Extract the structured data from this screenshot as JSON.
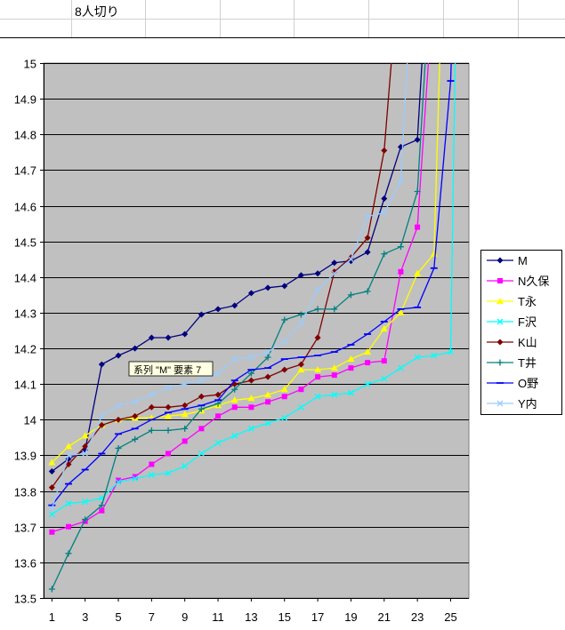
{
  "sheet": {
    "cell_label": "8人切り"
  },
  "tooltip": {
    "text": "系列 \"M\" 要素 7"
  },
  "colors": {
    "plot_bg": "#c0c0c0",
    "grid": "#000000"
  },
  "chart_data": {
    "type": "line",
    "title": "",
    "xlabel": "",
    "ylabel": "",
    "ylim": [
      13.5,
      15
    ],
    "yticks": [
      13.5,
      13.6,
      13.7,
      13.8,
      13.9,
      14,
      14.1,
      14.2,
      14.3,
      14.4,
      14.5,
      14.6,
      14.7,
      14.8,
      14.9,
      15
    ],
    "ytick_labels": [
      "13.5",
      "13.6",
      "13.7",
      "13.8",
      "13.9",
      "14",
      "14.1",
      "14.2",
      "14.3",
      "14.4",
      "14.5",
      "14.6",
      "14.7",
      "14.8",
      "14.9",
      "15"
    ],
    "xticks": [
      1,
      3,
      5,
      7,
      9,
      11,
      13,
      15,
      17,
      19,
      21,
      23,
      25
    ],
    "xtick_labels": [
      "1",
      "3",
      "5",
      "7",
      "9",
      "11",
      "13",
      "15",
      "17",
      "19",
      "21",
      "23",
      "25"
    ],
    "xlim": [
      0.5,
      26.1
    ],
    "grid": true,
    "legend_position": "right",
    "series": [
      {
        "name": "M",
        "color": "#000080",
        "marker": "diamond",
        "x": [
          1,
          2,
          3,
          4,
          5,
          6,
          7,
          8,
          9,
          10,
          11,
          12,
          13,
          14,
          15,
          16,
          17,
          18,
          19,
          20,
          21,
          22,
          23,
          23.4
        ],
        "values": [
          13.855,
          13.89,
          13.915,
          14.155,
          14.18,
          14.2,
          14.23,
          14.23,
          14.24,
          14.295,
          14.31,
          14.32,
          14.355,
          14.37,
          14.375,
          14.405,
          14.41,
          14.44,
          14.445,
          14.47,
          14.62,
          14.765,
          14.785,
          15.1
        ]
      },
      {
        "name": "N久保",
        "color": "#ff00ff",
        "marker": "square",
        "x": [
          1,
          2,
          3,
          4,
          5,
          6,
          7,
          8,
          9,
          10,
          11,
          12,
          13,
          14,
          15,
          16,
          17,
          18,
          19,
          20,
          21,
          22,
          23,
          23.8
        ],
        "values": [
          13.685,
          13.7,
          13.715,
          13.745,
          13.83,
          13.84,
          13.875,
          13.905,
          13.94,
          13.975,
          14.01,
          14.035,
          14.035,
          14.05,
          14.065,
          14.085,
          14.12,
          14.125,
          14.145,
          14.16,
          14.165,
          14.415,
          14.54,
          15.1
        ]
      },
      {
        "name": "T永",
        "color": "#ffff00",
        "marker": "triangle",
        "x": [
          1,
          2,
          3,
          4,
          5,
          6,
          7,
          8,
          9,
          10,
          11,
          12,
          13,
          14,
          15,
          16,
          17,
          18,
          19,
          20,
          21,
          22,
          23,
          24,
          24.4
        ],
        "values": [
          13.88,
          13.925,
          13.955,
          13.985,
          14.0,
          14.005,
          14.005,
          14.01,
          14.015,
          14.025,
          14.04,
          14.055,
          14.06,
          14.07,
          14.085,
          14.14,
          14.14,
          14.145,
          14.17,
          14.19,
          14.255,
          14.3,
          14.41,
          14.465,
          15.1
        ]
      },
      {
        "name": "F沢",
        "color": "#00ffff",
        "marker": "x",
        "x": [
          1,
          2,
          3,
          4,
          5,
          6,
          7,
          8,
          9,
          10,
          11,
          12,
          13,
          14,
          15,
          16,
          17,
          18,
          19,
          20,
          21,
          22,
          23,
          24,
          25,
          25.3
        ],
        "values": [
          13.735,
          13.765,
          13.77,
          13.78,
          13.825,
          13.835,
          13.845,
          13.85,
          13.87,
          13.905,
          13.935,
          13.955,
          13.975,
          13.99,
          14.005,
          14.035,
          14.065,
          14.07,
          14.075,
          14.1,
          14.115,
          14.145,
          14.175,
          14.18,
          14.19,
          15.1
        ]
      },
      {
        "name": "K山",
        "color": "#800000",
        "marker": "diamond",
        "x": [
          1,
          2,
          3,
          4,
          5,
          6,
          7,
          8,
          9,
          10,
          11,
          12,
          13,
          14,
          15,
          16,
          17,
          18,
          19,
          20,
          21,
          21.6
        ],
        "values": [
          13.81,
          13.875,
          13.925,
          13.985,
          14.0,
          14.01,
          14.035,
          14.035,
          14.04,
          14.065,
          14.07,
          14.1,
          14.11,
          14.12,
          14.14,
          14.155,
          14.23,
          14.415,
          14.455,
          14.51,
          14.755,
          15.1
        ]
      },
      {
        "name": "T井",
        "color": "#008080",
        "marker": "plus",
        "x": [
          1,
          2,
          3,
          4,
          5,
          6,
          7,
          8,
          9,
          10,
          11,
          12,
          13,
          14,
          15,
          16,
          17,
          18,
          19,
          20,
          21,
          22,
          23,
          23.6
        ],
        "values": [
          13.525,
          13.625,
          13.72,
          13.76,
          13.92,
          13.945,
          13.97,
          13.97,
          13.975,
          14.03,
          14.045,
          14.085,
          14.13,
          14.175,
          14.28,
          14.295,
          14.31,
          14.31,
          14.35,
          14.36,
          14.465,
          14.485,
          14.64,
          15.1
        ]
      },
      {
        "name": "O野",
        "color": "#0000ff",
        "marker": "dash",
        "x": [
          1,
          2,
          3,
          4,
          5,
          6,
          7,
          8,
          9,
          10,
          11,
          12,
          13,
          14,
          15,
          16,
          17,
          18,
          19,
          20,
          21,
          22,
          23,
          24,
          25,
          25.1
        ],
        "values": [
          13.76,
          13.82,
          13.86,
          13.905,
          13.96,
          13.975,
          14.0,
          14.02,
          14.03,
          14.04,
          14.055,
          14.11,
          14.14,
          14.145,
          14.17,
          14.175,
          14.18,
          14.19,
          14.21,
          14.24,
          14.275,
          14.31,
          14.315,
          14.425,
          14.95,
          15.1
        ]
      },
      {
        "name": "Y内",
        "color": "#99ccff",
        "marker": "x",
        "x": [
          1,
          2,
          3,
          4,
          5,
          6,
          7,
          8,
          9,
          10,
          11,
          12,
          13,
          14,
          15,
          16,
          17,
          18,
          19,
          20,
          21,
          22,
          22.5
        ],
        "values": [
          13.75,
          13.9,
          13.905,
          14.01,
          14.04,
          14.05,
          14.07,
          14.09,
          14.1,
          14.11,
          14.13,
          14.17,
          14.175,
          14.19,
          14.22,
          14.27,
          14.365,
          14.41,
          14.45,
          14.57,
          14.58,
          14.67,
          15.1
        ]
      }
    ]
  }
}
